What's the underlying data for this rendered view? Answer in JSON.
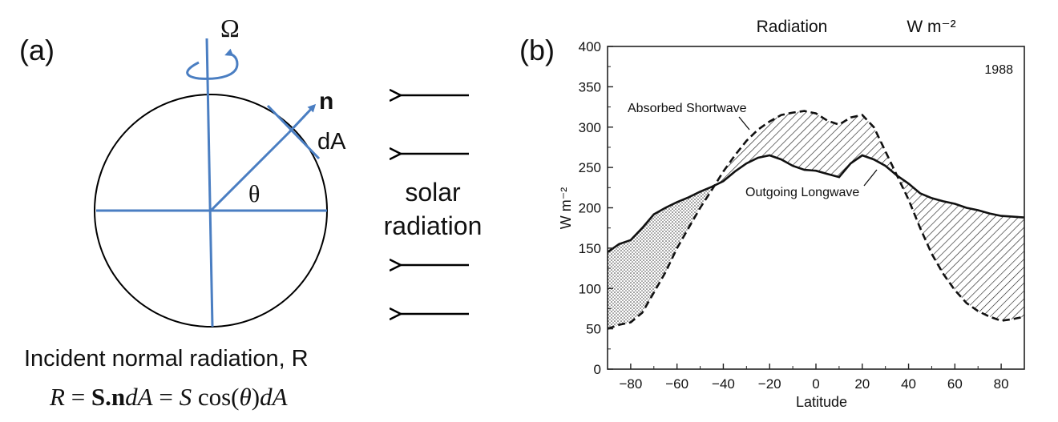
{
  "panel_a": {
    "label": "(a)",
    "omega": "Ω",
    "normal_vector": "n",
    "area_element": "dA",
    "angle": "θ",
    "solar_line1": "solar",
    "solar_line2": "radiation",
    "caption": "Incident normal radiation, R",
    "formula": {
      "lhs": "R",
      "eq1": " = ",
      "S": "S",
      "dot": ".",
      "n": "n",
      "dA1": "dA",
      "eq2": " = ",
      "S2": "S",
      "cos": " cos(",
      "theta": "θ",
      "close": ")",
      "dA2": "dA"
    },
    "colors": {
      "axes": "#4a7ec2",
      "circle": "#000000",
      "arrows": "#000000"
    }
  },
  "panel_b": {
    "label": "(b)"
  },
  "chart_data": {
    "type": "line",
    "title": "Radiation",
    "units_label": "W m⁻²",
    "year_label": "1988",
    "xlabel": "Latitude",
    "ylabel": "W m⁻²",
    "xlim": [
      -90,
      90
    ],
    "ylim": [
      0,
      400
    ],
    "xticks": [
      -80,
      -60,
      -40,
      -20,
      0,
      20,
      40,
      60,
      80
    ],
    "xtick_labels": [
      "−80",
      "−60",
      "−40",
      "−20",
      "0",
      "20",
      "40",
      "60",
      "80"
    ],
    "yticks": [
      0,
      50,
      100,
      150,
      200,
      250,
      300,
      350,
      400
    ],
    "ytick_labels": [
      "0",
      "50",
      "100",
      "150",
      "200",
      "250",
      "300",
      "350",
      "400"
    ],
    "annotations": [
      "Absorbed Shortwave",
      "Outgoing Longwave"
    ],
    "x": [
      -90,
      -85,
      -80,
      -75,
      -70,
      -65,
      -60,
      -55,
      -50,
      -45,
      -40,
      -35,
      -30,
      -25,
      -20,
      -15,
      -10,
      -5,
      0,
      5,
      10,
      15,
      20,
      25,
      30,
      35,
      40,
      45,
      50,
      55,
      60,
      65,
      70,
      75,
      80,
      85,
      90
    ],
    "series": [
      {
        "name": "Absorbed Shortwave",
        "style": "dashed",
        "values": [
          50,
          55,
          58,
          70,
          95,
          120,
          150,
          175,
          200,
          222,
          245,
          265,
          283,
          297,
          307,
          315,
          318,
          320,
          317,
          308,
          303,
          312,
          315,
          300,
          270,
          240,
          210,
          175,
          143,
          118,
          98,
          82,
          72,
          65,
          60,
          62,
          65
        ]
      },
      {
        "name": "Outgoing Longwave",
        "style": "solid",
        "values": [
          145,
          155,
          160,
          175,
          192,
          200,
          207,
          213,
          220,
          226,
          233,
          245,
          255,
          262,
          265,
          260,
          252,
          247,
          246,
          242,
          238,
          255,
          265,
          260,
          252,
          240,
          230,
          218,
          212,
          208,
          205,
          200,
          197,
          193,
          190,
          189,
          188
        ]
      }
    ],
    "fills": [
      {
        "region": "shortwave above longwave",
        "pattern": "hatched"
      },
      {
        "region": "longwave above shortwave",
        "pattern": "stippled"
      }
    ]
  }
}
